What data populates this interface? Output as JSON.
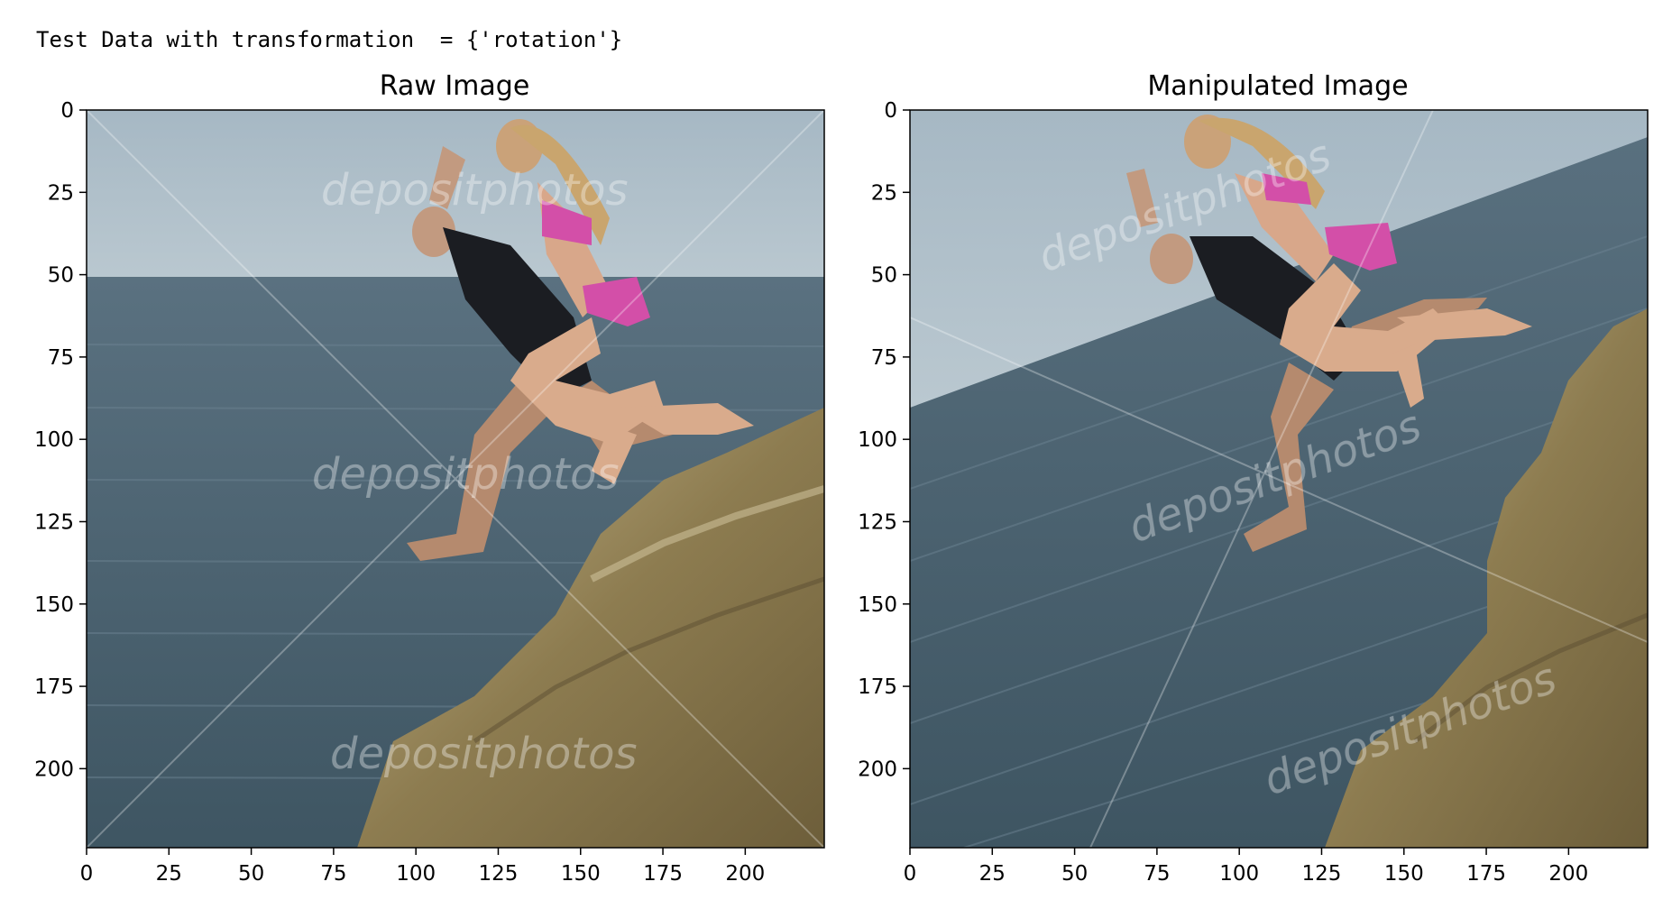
{
  "output": {
    "header": "Test Data with transformation  = {'rotation'}"
  },
  "panels": [
    {
      "title": "Raw Image",
      "x_ticks": [
        "0",
        "25",
        "50",
        "75",
        "100",
        "125",
        "150",
        "175",
        "200"
      ],
      "y_ticks": [
        "0",
        "25",
        "50",
        "75",
        "100",
        "125",
        "150",
        "175",
        "200"
      ],
      "watermark": "depositphotos",
      "image_description_colors": {
        "sky": "#a9bac6",
        "sea": "#48606f",
        "rock": "#9a8a5e"
      }
    },
    {
      "title": "Manipulated Image",
      "x_ticks": [
        "0",
        "25",
        "50",
        "75",
        "100",
        "125",
        "150",
        "175",
        "200"
      ],
      "y_ticks": [
        "0",
        "25",
        "50",
        "75",
        "100",
        "125",
        "150",
        "175",
        "200"
      ],
      "watermark": "depositphotos",
      "image_description_colors": {
        "sky": "#b4c3cd",
        "sea": "#4e6675",
        "rock": "#a08f62"
      }
    }
  ]
}
